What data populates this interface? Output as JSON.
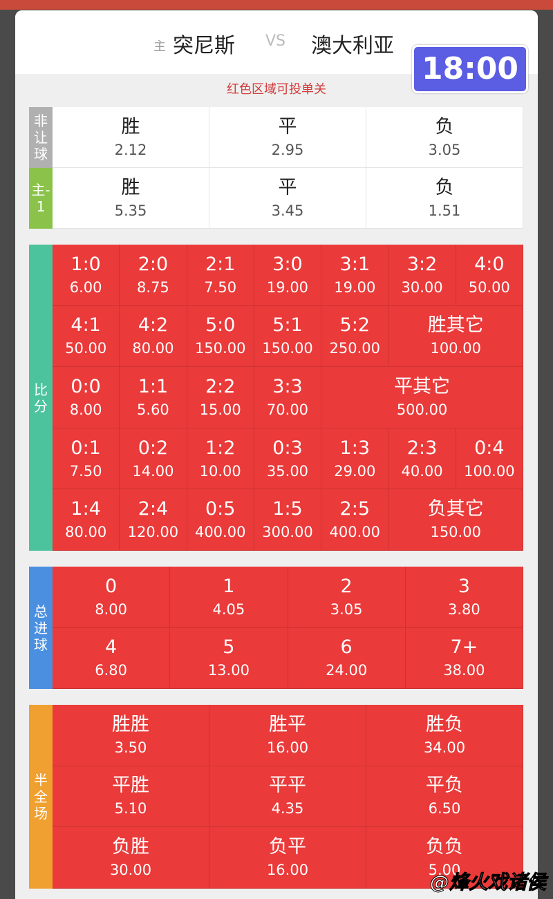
{
  "header": {
    "home_tag": "主",
    "home": "突尼斯",
    "vs": "VS",
    "away": "澳大利亚",
    "time": "18:00"
  },
  "notice": "红色区域可投单关",
  "sections": [
    {
      "label": "非让球",
      "color": "#b0b0b0",
      "cell_color": "#ffffff",
      "columns": 3,
      "rows": [
        [
          {
            "name": "胜",
            "odds": "2.12"
          },
          {
            "name": "平",
            "odds": "2.95"
          },
          {
            "name": "负",
            "odds": "3.05"
          }
        ]
      ]
    },
    {
      "label": "主-1",
      "color": "#8bc34a",
      "cell_color": "#ffffff",
      "columns": 3,
      "rows": [
        [
          {
            "name": "胜",
            "odds": "5.35"
          },
          {
            "name": "平",
            "odds": "3.45"
          },
          {
            "name": "负",
            "odds": "1.51"
          }
        ]
      ]
    },
    {
      "label": "比分",
      "color": "#4cc39c",
      "cell_color": "#ea3a3a",
      "columns": 7,
      "rows": [
        [
          {
            "name": "1:0",
            "odds": "6.00"
          },
          {
            "name": "2:0",
            "odds": "8.75"
          },
          {
            "name": "2:1",
            "odds": "7.50"
          },
          {
            "name": "3:0",
            "odds": "19.00"
          },
          {
            "name": "3:1",
            "odds": "19.00"
          },
          {
            "name": "3:2",
            "odds": "30.00"
          },
          {
            "name": "4:0",
            "odds": "50.00"
          }
        ],
        [
          {
            "name": "4:1",
            "odds": "50.00"
          },
          {
            "name": "4:2",
            "odds": "80.00"
          },
          {
            "name": "5:0",
            "odds": "150.00"
          },
          {
            "name": "5:1",
            "odds": "150.00"
          },
          {
            "name": "5:2",
            "odds": "250.00"
          },
          {
            "name": "胜其它",
            "odds": "100.00"
          }
        ],
        [
          {
            "name": "0:0",
            "odds": "8.00"
          },
          {
            "name": "1:1",
            "odds": "5.60"
          },
          {
            "name": "2:2",
            "odds": "15.00"
          },
          {
            "name": "3:3",
            "odds": "70.00"
          },
          {
            "name": "平其它",
            "odds": "500.00"
          }
        ],
        [
          {
            "name": "0:1",
            "odds": "7.50"
          },
          {
            "name": "0:2",
            "odds": "14.00"
          },
          {
            "name": "1:2",
            "odds": "10.00"
          },
          {
            "name": "0:3",
            "odds": "35.00"
          },
          {
            "name": "1:3",
            "odds": "29.00"
          },
          {
            "name": "2:3",
            "odds": "40.00"
          },
          {
            "name": "0:4",
            "odds": "100.00"
          }
        ],
        [
          {
            "name": "1:4",
            "odds": "80.00"
          },
          {
            "name": "2:4",
            "odds": "120.00"
          },
          {
            "name": "0:5",
            "odds": "400.00"
          },
          {
            "name": "1:5",
            "odds": "300.00"
          },
          {
            "name": "2:5",
            "odds": "400.00"
          },
          {
            "name": "负其它",
            "odds": "150.00"
          }
        ]
      ]
    },
    {
      "label": "总进球",
      "color": "#4a8fe0",
      "cell_color": "#ea3a3a",
      "columns": 4,
      "rows": [
        [
          {
            "name": "0",
            "odds": "8.00"
          },
          {
            "name": "1",
            "odds": "4.05"
          },
          {
            "name": "2",
            "odds": "3.05"
          },
          {
            "name": "3",
            "odds": "3.80"
          }
        ],
        [
          {
            "name": "4",
            "odds": "6.80"
          },
          {
            "name": "5",
            "odds": "13.00"
          },
          {
            "name": "6",
            "odds": "24.00"
          },
          {
            "name": "7+",
            "odds": "38.00"
          }
        ]
      ]
    },
    {
      "label": "半全场",
      "color": "#f0a030",
      "cell_color": "#ea3a3a",
      "columns": 3,
      "rows": [
        [
          {
            "name": "胜胜",
            "odds": "3.50"
          },
          {
            "name": "胜平",
            "odds": "16.00"
          },
          {
            "name": "胜负",
            "odds": "34.00"
          }
        ],
        [
          {
            "name": "平胜",
            "odds": "5.10"
          },
          {
            "name": "平平",
            "odds": "4.35"
          },
          {
            "name": "平负",
            "odds": "6.50"
          }
        ],
        [
          {
            "name": "负胜",
            "odds": "30.00"
          },
          {
            "name": "负平",
            "odds": "16.00"
          },
          {
            "name": "负负",
            "odds": "5.00"
          }
        ]
      ]
    }
  ],
  "watermark": "@烽火戏诸侯"
}
